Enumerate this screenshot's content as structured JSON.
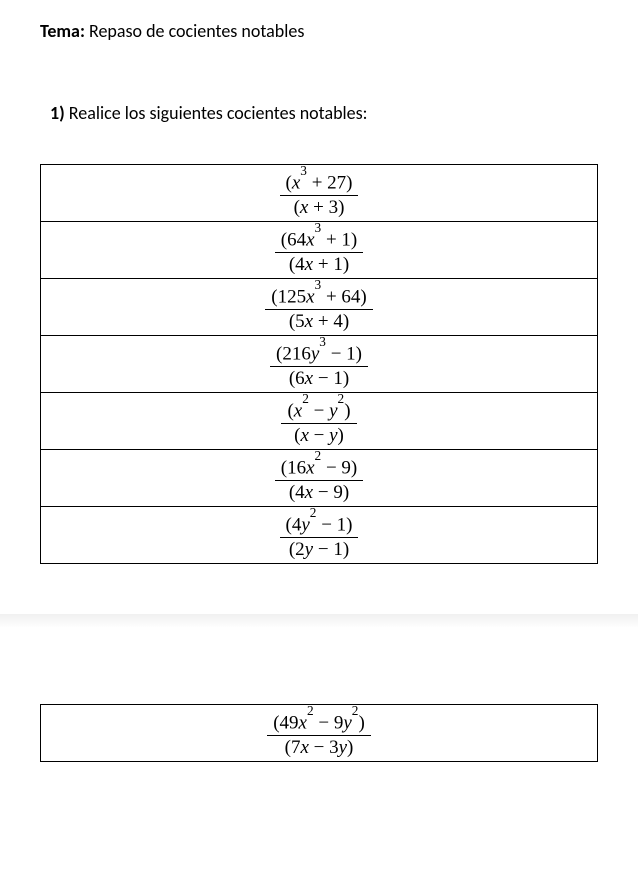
{
  "tema_label": "Tema:",
  "tema_text": " Repaso de cocientes notables",
  "instr_num": "1)",
  "instr_text": " Realice los siguientes cocientes notables:",
  "table1": [
    {
      "num": "(<i>x</i><sup>3</sup> + 27)",
      "den": "(<i>x</i> + 3)"
    },
    {
      "num": "(64<i>x</i><sup>3</sup> + 1)",
      "den": "(4<i>x</i> + 1)"
    },
    {
      "num": "(125<i>x</i><sup>3</sup> + 64)",
      "den": "(5<i>x</i> + 4)"
    },
    {
      "num": "(216<i>y</i><sup>3</sup> − 1)",
      "den": "(6<i>x</i> − 1)"
    },
    {
      "num": "(<i>x</i><sup>2</sup> − <i>y</i><sup>2</sup>)",
      "den": "(<i>x</i> − <i>y</i>)"
    },
    {
      "num": "(16<i>x</i><sup>2</sup> − 9)",
      "den": "(4<i>x</i> − 9)"
    },
    {
      "num": "(4<i>y</i><sup>2</sup> − 1)",
      "den": "(2<i>y</i> − 1)"
    }
  ],
  "table2": [
    {
      "num": "(49<i>x</i><sup>2</sup> − 9<i>y</i><sup>2</sup>)",
      "den": "(7<i>x</i> − 3<i>y</i>)"
    }
  ],
  "colors": {
    "text": "#000000",
    "background": "#ffffff",
    "border": "#000000",
    "shadow": "#f0f0f0"
  },
  "typography": {
    "body_font": "Calibri",
    "math_font": "Cambria Math",
    "body_size_pt": 14,
    "math_size_pt": 14
  }
}
